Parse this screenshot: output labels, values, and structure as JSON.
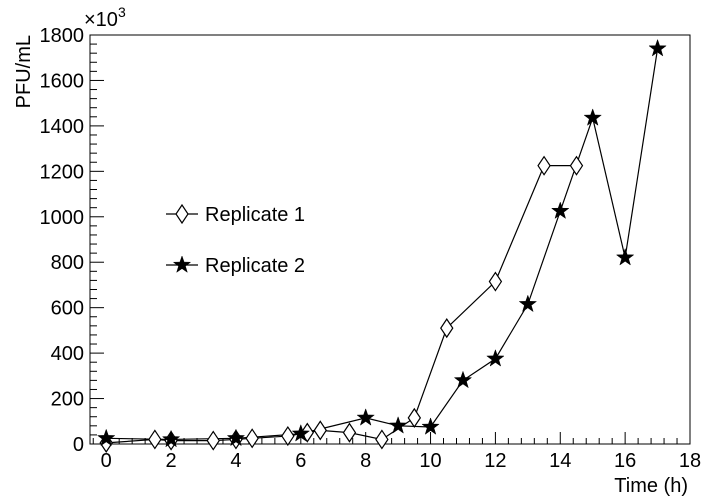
{
  "chart_data": {
    "type": "line",
    "xlabel": "Time (h)",
    "ylabel": "PFU/mL",
    "y_multiplier_base": "×10",
    "y_multiplier_exp": "3",
    "xlim": [
      -0.5,
      18
    ],
    "ylim": [
      0,
      1800
    ],
    "xticks": [
      0,
      2,
      4,
      6,
      8,
      10,
      12,
      14,
      16,
      18
    ],
    "yticks": [
      0,
      200,
      400,
      600,
      800,
      1000,
      1200,
      1400,
      1600,
      1800
    ],
    "grid": false,
    "legend_position": "left-center",
    "series": [
      {
        "name": "Replicate 1",
        "marker": "open-diamond",
        "color": "#000000",
        "x": [
          0,
          1.5,
          2,
          3.3,
          4,
          4.5,
          5.6,
          6.2,
          6.6,
          7.5,
          8.5,
          9.5,
          10.5,
          12,
          13.5,
          14.5
        ],
        "y": [
          5,
          20,
          15,
          15,
          20,
          25,
          35,
          50,
          60,
          50,
          20,
          115,
          510,
          715,
          1225,
          1225
        ]
      },
      {
        "name": "Replicate 2",
        "marker": "filled-star",
        "color": "#000000",
        "x": [
          0,
          2,
          4,
          6,
          8,
          9,
          10,
          11,
          12,
          13,
          14,
          15,
          16,
          17
        ],
        "y": [
          25,
          20,
          25,
          45,
          115,
          80,
          75,
          280,
          375,
          615,
          1025,
          1435,
          820,
          1740
        ]
      }
    ]
  }
}
